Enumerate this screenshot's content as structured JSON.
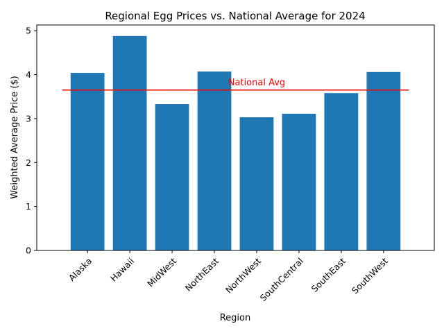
{
  "chart_data": {
    "type": "bar",
    "title": "Regional Egg Prices vs. National Average for 2024",
    "xlabel": "Region",
    "ylabel": "Weighted Average Price ($)",
    "categories": [
      "Alaska",
      "Hawaii",
      "MidWest",
      "NorthEast",
      "NorthWest",
      "SouthCentral",
      "SouthEast",
      "SouthWest"
    ],
    "values": [
      4.04,
      4.88,
      3.33,
      4.07,
      3.03,
      3.11,
      3.58,
      4.06
    ],
    "ylim": [
      0,
      5.13
    ],
    "yticks": [
      0,
      1,
      2,
      3,
      4,
      5
    ],
    "bar_color": "#1f77b4",
    "reference_line": {
      "label": "National Avg",
      "value": 3.65,
      "color": "#ff0000"
    },
    "grid": false
  }
}
